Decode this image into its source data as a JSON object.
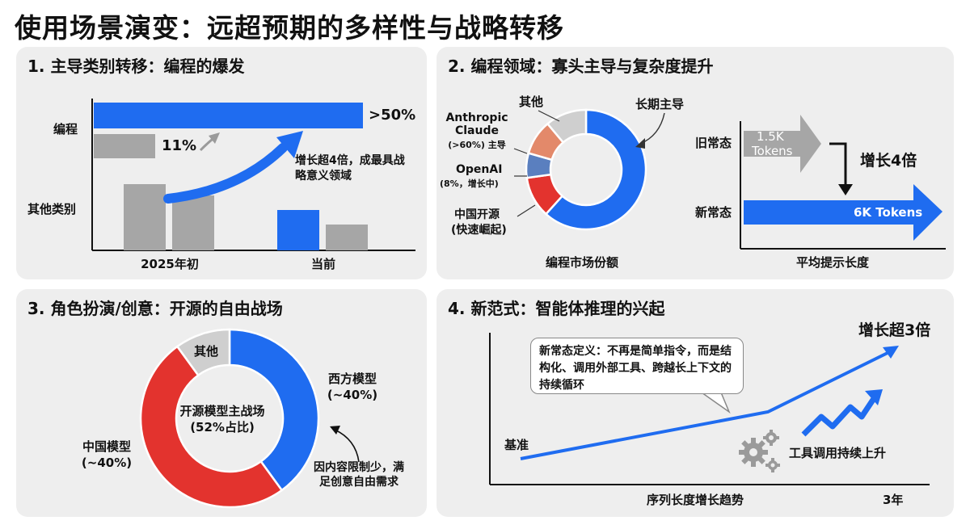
{
  "page_title": "使用场景演变：远超预期的多样性与战略转移",
  "colors": {
    "blue": "#1f6cf0",
    "gray": "#a6a6a6",
    "red": "#e3332e",
    "orange": "#e3896a",
    "steel": "#5a7fbf",
    "lightgray": "#cfcfcf",
    "panel": "#eeeeee"
  },
  "panel1": {
    "title": "1. 主导类别转移：编程的爆发",
    "row_coding": "编程",
    "row_other": "其他类别",
    "coding_now_label": ">50%",
    "coding_early_label": "11%",
    "annotation": "增长超4倍，成最具战略意义领域",
    "x_labels": [
      "2025年初",
      "当前"
    ]
  },
  "panel2": {
    "title": "2. 编程领域：寡头主导与复杂度提升",
    "donut_caption": "编程市场份额",
    "seg_other": "其他",
    "seg_anthropic": "Anthropic Claude",
    "seg_anthropic_note": "(>60%) 主导",
    "seg_openai": "OpenAI",
    "seg_openai_note": "(8%，增长中)",
    "seg_china": "中国开源",
    "seg_china_note": "(快速崛起)",
    "long_term": "长期主导",
    "old_label": "旧常态",
    "new_label": "新常态",
    "old_tokens_value": "1.5K",
    "old_tokens_unit": "Tokens",
    "new_tokens": "6K Tokens",
    "growth": "增长4倍",
    "axis_caption": "平均提示长度"
  },
  "panel3": {
    "title": "3. 角色扮演/创意：开源的自由战场",
    "center_line1": "开源模型主战场",
    "center_line2": "(52%占比)",
    "western": "西方模型",
    "western_share": "(~40%)",
    "chinese": "中国模型",
    "chinese_share": "(~40%)",
    "other": "其他",
    "note": "因内容限制少，满足创意自由需求"
  },
  "panel4": {
    "title": "4. 新范式：智能体推理的兴起",
    "callout": "新常态定义：不再是简单指令，而是结构化、调用外部工具、跨越长上下文的持续循环",
    "growth": "增长超3倍",
    "baseline": "基准",
    "tool_label": "工具调用持续上升",
    "x_caption": "序列长度增长趋势",
    "x_end": "3年"
  }
}
